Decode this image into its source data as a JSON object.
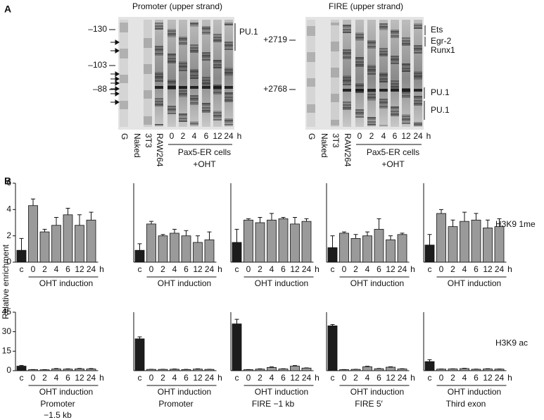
{
  "panel_a": {
    "label": "A",
    "gels": [
      {
        "title": "Promoter (upper strand)",
        "markers": [
          "–130",
          "–103",
          "–88"
        ],
        "lanes": [
          "G",
          "Naked",
          "3T3",
          "RAW264",
          "0",
          "2",
          "4",
          "6",
          "12",
          "24",
          "h"
        ],
        "group_label": "Pax5-ER cells",
        "group_sublabel": "+OHT",
        "annotations": [
          "PU.1"
        ]
      },
      {
        "title": "FIRE (upper strand)",
        "markers": [
          "+2719",
          "+2768"
        ],
        "lanes": [
          "G",
          "Naked",
          "3T3",
          "RAW264",
          "0",
          "2",
          "4",
          "6",
          "12",
          "24",
          "h"
        ],
        "group_label": "Pax5-ER cells",
        "group_sublabel": "+OHT",
        "annotations": [
          "Ets",
          "Egr-2",
          "Runx1",
          "PU.1",
          "PU.1"
        ]
      }
    ]
  },
  "panel_b": {
    "label": "B",
    "y_label": "Relative enrichment"
  },
  "chart_data": [
    {
      "type": "bar",
      "categories": [
        "c",
        "0",
        "2",
        "4",
        "6",
        "12",
        "24"
      ],
      "unit": "h",
      "x_label": "OHT induction",
      "values": [
        0.9,
        4.3,
        2.3,
        2.8,
        3.6,
        2.8,
        3.2
      ],
      "errors": [
        0.9,
        0.5,
        0.2,
        0.6,
        0.5,
        0.8,
        0.6
      ],
      "color": "#9a9a9a",
      "control_color": "#1c1c1c",
      "ylim": [
        0,
        6
      ],
      "yticks": [
        0,
        2,
        4,
        6
      ]
    },
    {
      "type": "bar",
      "categories": [
        "c",
        "0",
        "2",
        "4",
        "6",
        "12",
        "24"
      ],
      "unit": "h",
      "x_label": "OHT induction",
      "values": [
        0.9,
        2.9,
        2.0,
        2.2,
        2.0,
        1.5,
        1.7
      ],
      "errors": [
        0.5,
        0.2,
        0.1,
        0.3,
        0.4,
        0.5,
        0.6
      ],
      "color": "#9a9a9a",
      "control_color": "#1c1c1c",
      "ylim": [
        0,
        6
      ]
    },
    {
      "type": "bar",
      "categories": [
        "c",
        "0",
        "2",
        "4",
        "6",
        "12",
        "24"
      ],
      "unit": "h",
      "x_label": "OHT induction",
      "values": [
        1.5,
        3.2,
        3.0,
        3.2,
        3.3,
        2.9,
        3.1
      ],
      "errors": [
        1.0,
        0.1,
        0.4,
        0.5,
        0.1,
        0.5,
        0.2
      ],
      "color": "#9a9a9a",
      "control_color": "#1c1c1c",
      "ylim": [
        0,
        6
      ]
    },
    {
      "type": "bar",
      "categories": [
        "c",
        "0",
        "2",
        "4",
        "6",
        "12",
        "24"
      ],
      "unit": "h",
      "x_label": "OHT induction",
      "values": [
        1.1,
        2.2,
        1.8,
        2.0,
        2.5,
        1.7,
        2.1
      ],
      "errors": [
        0.9,
        0.1,
        0.3,
        0.3,
        0.8,
        0.3,
        0.1
      ],
      "color": "#9a9a9a",
      "control_color": "#1c1c1c",
      "ylim": [
        0,
        6
      ]
    },
    {
      "type": "bar",
      "categories": [
        "c",
        "0",
        "2",
        "4",
        "6",
        "12",
        "24"
      ],
      "unit": "h",
      "x_label": "OHT induction",
      "values": [
        1.3,
        3.7,
        2.7,
        3.1,
        3.2,
        2.6,
        2.7
      ],
      "errors": [
        0.8,
        0.3,
        0.5,
        0.7,
        0.5,
        0.6,
        0.6
      ],
      "color": "#9a9a9a",
      "control_color": "#1c1c1c",
      "ylim": [
        0,
        6
      ],
      "row_label": "H3K9 1me"
    },
    {
      "type": "bar",
      "categories": [
        "c",
        "0",
        "2",
        "4",
        "6",
        "12",
        "24"
      ],
      "unit": "h",
      "x_label": "OHT induction",
      "values": [
        3.5,
        0.8,
        0.7,
        1.3,
        1.2,
        1.4,
        1.3
      ],
      "errors": [
        0.5,
        0.1,
        0.1,
        0.3,
        0.2,
        0.3,
        0.3
      ],
      "color": "#9a9a9a",
      "control_color": "#1c1c1c",
      "ylim": [
        0,
        45
      ],
      "yticks": [
        0,
        15,
        30,
        45
      ],
      "subtitle": [
        "Promoter",
        "−1.5 kb"
      ]
    },
    {
      "type": "bar",
      "categories": [
        "c",
        "0",
        "2",
        "4",
        "6",
        "12",
        "24"
      ],
      "unit": "h",
      "x_label": "OHT induction",
      "values": [
        24.5,
        1.0,
        1.0,
        1.1,
        0.9,
        1.2,
        1.0
      ],
      "errors": [
        1.5,
        0.1,
        0.1,
        0.2,
        0.1,
        0.2,
        0.1
      ],
      "color": "#9a9a9a",
      "control_color": "#1c1c1c",
      "ylim": [
        0,
        45
      ],
      "subtitle": [
        "Promoter"
      ]
    },
    {
      "type": "bar",
      "categories": [
        "c",
        "0",
        "2",
        "4",
        "6",
        "12",
        "24"
      ],
      "unit": "h",
      "x_label": "OHT induction",
      "values": [
        36,
        0.8,
        1.2,
        2.5,
        1.3,
        3.5,
        2.0
      ],
      "errors": [
        3.5,
        0.1,
        0.2,
        0.4,
        0.2,
        0.4,
        0.2
      ],
      "color": "#9a9a9a",
      "control_color": "#1c1c1c",
      "ylim": [
        0,
        45
      ],
      "subtitle": [
        "FIRE −1 kb"
      ]
    },
    {
      "type": "bar",
      "categories": [
        "c",
        "0",
        "2",
        "4",
        "6",
        "12",
        "24"
      ],
      "unit": "h",
      "x_label": "OHT induction",
      "values": [
        34.5,
        0.8,
        1.0,
        3.0,
        1.5,
        2.7,
        1.3
      ],
      "errors": [
        1.0,
        0.1,
        0.1,
        0.4,
        0.2,
        0.3,
        0.2
      ],
      "color": "#9a9a9a",
      "control_color": "#1c1c1c",
      "ylim": [
        0,
        45
      ],
      "subtitle": [
        "FIRE 5′"
      ]
    },
    {
      "type": "bar",
      "categories": [
        "c",
        "0",
        "2",
        "4",
        "6",
        "12",
        "24"
      ],
      "unit": "h",
      "x_label": "OHT induction",
      "values": [
        7,
        1.2,
        1.3,
        1.6,
        1.1,
        1.3,
        1.2
      ],
      "errors": [
        1.5,
        0.1,
        0.1,
        0.2,
        0.1,
        0.2,
        0.1
      ],
      "color": "#9a9a9a",
      "control_color": "#1c1c1c",
      "ylim": [
        0,
        45
      ],
      "subtitle": [
        "Third exon"
      ],
      "row_label": "H3K9 ac"
    }
  ]
}
